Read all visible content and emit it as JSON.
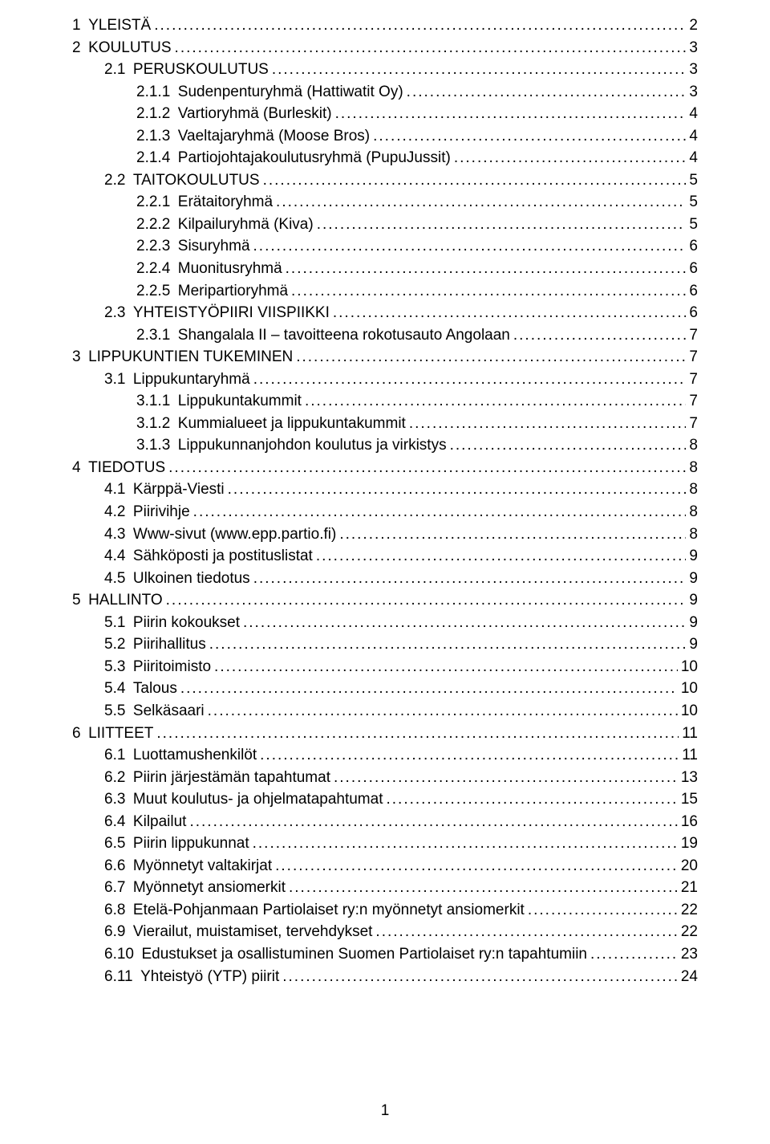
{
  "colors": {
    "text": "#000000",
    "background": "#ffffff"
  },
  "typography": {
    "font_family": "Arial",
    "font_size_pt": 14,
    "line_height": 1.45
  },
  "page_number": "1",
  "toc": [
    {
      "level": 0,
      "num": "1",
      "title": "YLEISTÄ",
      "page": "2"
    },
    {
      "level": 0,
      "num": "2",
      "title": "KOULUTUS",
      "page": "3"
    },
    {
      "level": 1,
      "num": "2.1",
      "title": "PERUSKOULUTUS",
      "page": "3"
    },
    {
      "level": 2,
      "num": "2.1.1",
      "title": "Sudenpenturyhmä (Hattiwatit Oy)",
      "page": "3"
    },
    {
      "level": 2,
      "num": "2.1.2",
      "title": "Vartioryhmä (Burleskit)",
      "page": "4"
    },
    {
      "level": 2,
      "num": "2.1.3",
      "title": "Vaeltajaryhmä (Moose Bros)",
      "page": "4"
    },
    {
      "level": 2,
      "num": "2.1.4",
      "title": "Partiojohtajakoulutusryhmä (PupuJussit)",
      "page": "4"
    },
    {
      "level": 1,
      "num": "2.2",
      "title": "TAITOKOULUTUS",
      "page": "5"
    },
    {
      "level": 2,
      "num": "2.2.1",
      "title": "Erätaitoryhmä",
      "page": "5"
    },
    {
      "level": 2,
      "num": "2.2.2",
      "title": "Kilpailuryhmä (Kiva)",
      "page": "5"
    },
    {
      "level": 2,
      "num": "2.2.3",
      "title": "Sisuryhmä",
      "page": "6"
    },
    {
      "level": 2,
      "num": "2.2.4",
      "title": "Muonitusryhmä",
      "page": "6"
    },
    {
      "level": 2,
      "num": "2.2.5",
      "title": "Meripartioryhmä",
      "page": "6"
    },
    {
      "level": 1,
      "num": "2.3",
      "title": "YHTEISTYÖPIIRI VIISPIIKKI",
      "page": "6"
    },
    {
      "level": 2,
      "num": "2.3.1",
      "title": "Shangalala II – tavoitteena rokotusauto Angolaan",
      "page": "7"
    },
    {
      "level": 0,
      "num": "3",
      "title": "LIPPUKUNTIEN TUKEMINEN",
      "page": "7"
    },
    {
      "level": 1,
      "num": "3.1",
      "title": "Lippukuntaryhmä",
      "page": "7"
    },
    {
      "level": 2,
      "num": "3.1.1",
      "title": "Lippukuntakummit",
      "page": "7"
    },
    {
      "level": 2,
      "num": "3.1.2",
      "title": "Kummialueet ja lippukuntakummit",
      "page": "7"
    },
    {
      "level": 2,
      "num": "3.1.3",
      "title": "Lippukunnanjohdon koulutus ja virkistys",
      "page": "8"
    },
    {
      "level": 0,
      "num": "4",
      "title": "TIEDOTUS",
      "page": "8"
    },
    {
      "level": 1,
      "num": "4.1",
      "title": "Kärppä-Viesti",
      "page": "8"
    },
    {
      "level": 1,
      "num": "4.2",
      "title": "Piirivihje",
      "page": "8"
    },
    {
      "level": 1,
      "num": "4.3",
      "title": "Www-sivut (www.epp.partio.fi)",
      "page": "8"
    },
    {
      "level": 1,
      "num": "4.4",
      "title": "Sähköposti ja postituslistat",
      "page": "9"
    },
    {
      "level": 1,
      "num": "4.5",
      "title": "Ulkoinen tiedotus",
      "page": "9"
    },
    {
      "level": 0,
      "num": "5",
      "title": "HALLINTO",
      "page": "9"
    },
    {
      "level": 1,
      "num": "5.1",
      "title": "Piirin kokoukset",
      "page": "9"
    },
    {
      "level": 1,
      "num": "5.2",
      "title": "Piirihallitus",
      "page": "9"
    },
    {
      "level": 1,
      "num": "5.3",
      "title": "Piiritoimisto",
      "page": "10"
    },
    {
      "level": 1,
      "num": "5.4",
      "title": "Talous",
      "page": "10"
    },
    {
      "level": 1,
      "num": "5.5",
      "title": "Selkäsaari",
      "page": "10"
    },
    {
      "level": 0,
      "num": "6",
      "title": "LIITTEET",
      "page": "11"
    },
    {
      "level": 1,
      "num": "6.1",
      "title": "Luottamushenkilöt",
      "page": "11"
    },
    {
      "level": 1,
      "num": "6.2",
      "title": "Piirin järjestämän tapahtumat",
      "page": "13"
    },
    {
      "level": 1,
      "num": "6.3",
      "title": "Muut koulutus- ja ohjelmatapahtumat",
      "page": "15"
    },
    {
      "level": 1,
      "num": "6.4",
      "title": "Kilpailut",
      "page": "16"
    },
    {
      "level": 1,
      "num": "6.5",
      "title": "Piirin lippukunnat",
      "page": "19"
    },
    {
      "level": 1,
      "num": "6.6",
      "title": "Myönnetyt valtakirjat",
      "page": "20"
    },
    {
      "level": 1,
      "num": "6.7",
      "title": "Myönnetyt ansiomerkit",
      "page": "21"
    },
    {
      "level": 1,
      "num": "6.8",
      "title": "Etelä-Pohjanmaan Partiolaiset ry:n myönnetyt ansiomerkit",
      "page": "22"
    },
    {
      "level": 1,
      "num": "6.9",
      "title": "Vierailut, muistamiset, tervehdykset",
      "page": "22"
    },
    {
      "level": 1,
      "num": "6.10",
      "title": "Edustukset ja osallistuminen Suomen Partiolaiset ry:n tapahtumiin",
      "page": "23"
    },
    {
      "level": 1,
      "num": "6.11",
      "title": "Yhteistyö (YTP) piirit",
      "page": "24"
    }
  ]
}
